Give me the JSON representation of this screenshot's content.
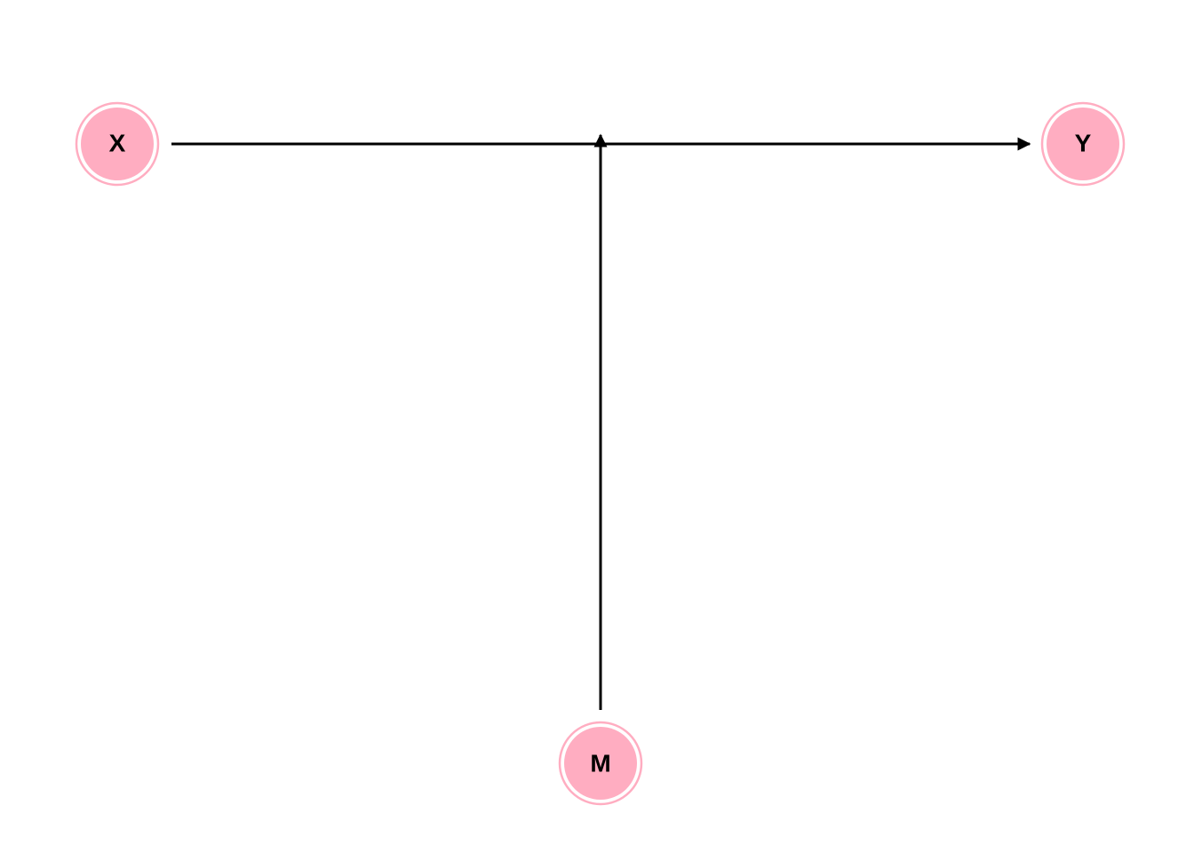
{
  "diagram": {
    "node_fill": "#ffadc1",
    "node_ring": "#ffadc1",
    "edge_color": "#000000",
    "nodes": [
      {
        "id": "X",
        "label": "X"
      },
      {
        "id": "Y",
        "label": "Y"
      },
      {
        "id": "M",
        "label": "M"
      }
    ],
    "edges": [
      {
        "from": "X",
        "to": "Y"
      },
      {
        "from": "M",
        "to": "X→Y"
      }
    ]
  }
}
